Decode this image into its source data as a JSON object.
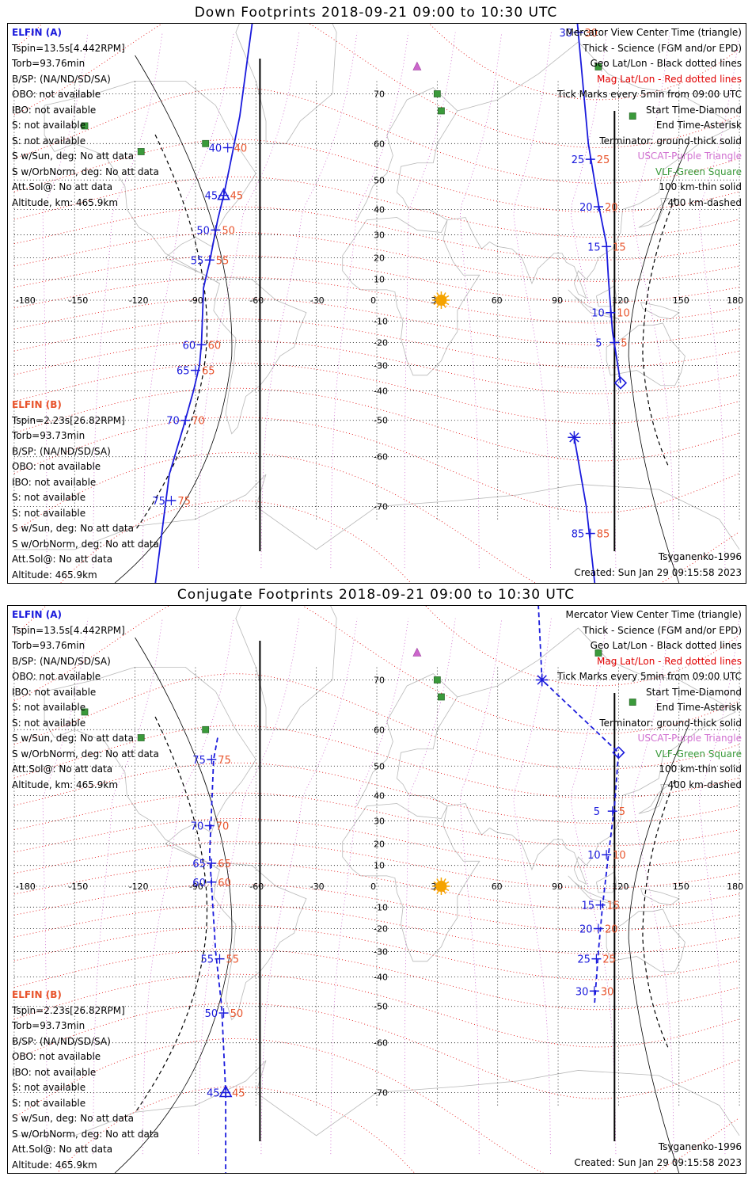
{
  "panels": [
    {
      "title": "Down Footprints 2018-09-21 09:00 to 10:30 UTC",
      "elfin_a": [
        "ELFIN (A)",
        "Tspin=13.5s[4.442RPM]",
        "Torb=93.76min",
        "B/SP: (NA/ND/SD/SA)",
        "OBO: not available",
        "IBO: not available",
        "S: not available",
        "S: not available",
        "S w/Sun, deg: No att data",
        "S w/OrbNorm, deg: No att data",
        "Att.Sol@: No att data",
        "Altitude, km: 465.9km"
      ],
      "elfin_b": [
        "ELFIN (B)",
        "Tspin=2.23s[26.82RPM]",
        "Torb=93.73min",
        "B/SP: (NA/ND/SD/SA)",
        "OBO: not available",
        "IBO: not available",
        "S: not available",
        "S: not available",
        "S w/Sun, deg: No att data",
        "S w/OrbNorm, deg: No att data",
        "Att.Sol@: No att data",
        "Altitude: 465.9km"
      ],
      "legend": [
        "Mercator View Center Time (triangle)",
        "Thick - Science (FGM and/or EPD)",
        "Geo Lat/Lon - Black dotted lines",
        "Mag Lat/Lon - Red dotted lines",
        "Tick Marks every 5min from 09:00 UTC",
        "Start Time-Diamond",
        "End Time-Asterisk",
        "Terminator: ground-thick solid",
        "USCAT-Purple Triangle",
        "VLF-Green Square",
        "100 km-thin solid",
        "400 km-dashed"
      ],
      "model": "Tsyganenko-1996",
      "created": "Created: Sun Jan 29 09:15:58 2023",
      "lon_labels": [
        "-180",
        "-150",
        "-120",
        "-90",
        "-60",
        "-30",
        "0",
        "30",
        "60",
        "90",
        "120",
        "150",
        "180"
      ],
      "lat_labels": [
        "70",
        "60",
        "50",
        "40",
        "30",
        "20",
        "10",
        "0",
        "-10",
        "-20",
        "-30",
        "-40",
        "-50",
        "-60",
        "-70"
      ],
      "track_a": [
        {
          "lon": -61,
          "lat": 80
        },
        {
          "lon": -68,
          "lat": 66
        },
        {
          "lon": -73,
          "lat": 54
        },
        {
          "lon": -76,
          "lat": 45
        },
        {
          "lon": -79,
          "lat": 36
        },
        {
          "lon": -83,
          "lat": 18
        },
        {
          "lon": -86,
          "lat": 6
        },
        {
          "lon": -87,
          "lat": -20
        },
        {
          "lon": -88,
          "lat": -30
        },
        {
          "lon": -91,
          "lat": -40
        },
        {
          "lon": -96,
          "lat": -52
        },
        {
          "lon": -103,
          "lat": -64
        },
        {
          "lon": -112,
          "lat": -82
        }
      ],
      "track_a_ticks": [
        {
          "lon": -74,
          "lat": 59,
          "label": "40"
        },
        {
          "lon": -76,
          "lat": 45,
          "label": "45"
        },
        {
          "lon": -80,
          "lat": 32,
          "label": "50"
        },
        {
          "lon": -83,
          "lat": 19,
          "label": "55"
        },
        {
          "lon": -87,
          "lat": -21,
          "label": "60"
        },
        {
          "lon": -90,
          "lat": -32,
          "label": "65"
        },
        {
          "lon": -95,
          "lat": -50,
          "label": "70"
        },
        {
          "lon": -102,
          "lat": -69,
          "label": "75"
        }
      ],
      "track_b": [
        {
          "lon": 99,
          "lat": 80
        },
        {
          "lon": 105,
          "lat": 60
        },
        {
          "lon": 110,
          "lat": 42
        },
        {
          "lon": 114,
          "lat": 26
        },
        {
          "lon": 115,
          "lat": 10
        },
        {
          "lon": 117,
          "lat": -15
        },
        {
          "lon": 121,
          "lat": -37
        }
      ],
      "track_b_ticks": [
        {
          "lon": 100,
          "lat": 78,
          "label": "30"
        },
        {
          "lon": 106,
          "lat": 56,
          "label": "25"
        },
        {
          "lon": 110,
          "lat": 41,
          "label": "20"
        },
        {
          "lon": 114,
          "lat": 25,
          "label": "15"
        },
        {
          "lon": 116,
          "lat": -6,
          "label": "10"
        },
        {
          "lon": 118,
          "lat": -20,
          "label": "5"
        }
      ],
      "track_b2": [
        {
          "lon": 98,
          "lat": -55
        },
        {
          "lon": 104,
          "lat": -70
        },
        {
          "lon": 110,
          "lat": -82
        }
      ],
      "track_b2_ticks": [
        {
          "lon": 106,
          "lat": -74,
          "label": "85"
        }
      ],
      "markers": {
        "triangle": {
          "lon": -76,
          "lat": 45
        },
        "diamond": {
          "lon": 121,
          "lat": -37
        },
        "asterisk": {
          "lon": 98,
          "lat": -55
        }
      }
    },
    {
      "title": "Conjugate Footprints 2018-09-21 09:00 to 10:30 UTC",
      "elfin_a": [
        "ELFIN (A)",
        "Tspin=13.5s[4.442RPM]",
        "Torb=93.76min",
        "B/SP: (NA/ND/SD/SA)",
        "OBO: not available",
        "IBO: not available",
        "S: not available",
        "S: not available",
        "S w/Sun, deg: No att data",
        "S w/OrbNorm, deg: No att data",
        "Att.Sol@: No att data",
        "Altitude, km: 465.9km"
      ],
      "elfin_b": [
        "ELFIN (B)",
        "Tspin=2.23s[26.82RPM]",
        "Torb=93.73min",
        "B/SP: (NA/ND/SD/SA)",
        "OBO: not available",
        "IBO: not available",
        "S: not available",
        "S: not available",
        "S w/Sun, deg: No att data",
        "S w/OrbNorm, deg: No att data",
        "Att.Sol@: No att data",
        "Altitude: 465.9km"
      ],
      "legend": [
        "Mercator View Center Time (triangle)",
        "Thick - Science (FGM and/or EPD)",
        "Geo Lat/Lon - Black dotted lines",
        "Mag Lat/Lon - Red dotted lines",
        "Tick Marks every 5min from 09:00 UTC",
        "Start Time-Diamond",
        "End Time-Asterisk",
        "Terminator: ground-thick solid",
        "USCAT-Purple Triangle",
        "VLF-Green Square",
        "100 km-thin solid",
        "400 km-dashed"
      ],
      "model": "Tsyganenko-1996",
      "created": "Created: Sun Jan 29 09:15:58 2023",
      "lon_labels": [
        "-180",
        "-150",
        "-120",
        "-90",
        "-60",
        "-30",
        "0",
        "30",
        "60",
        "90",
        "120",
        "150",
        "180"
      ],
      "lat_labels": [
        "70",
        "60",
        "50",
        "40",
        "30",
        "20",
        "10",
        "0",
        "-10",
        "-20",
        "-30",
        "-40",
        "-50",
        "-60",
        "-70"
      ],
      "track_a": [
        {
          "lon": -79,
          "lat": 58
        },
        {
          "lon": -81,
          "lat": 52
        },
        {
          "lon": -82,
          "lat": 35
        },
        {
          "lon": -83,
          "lat": 15
        },
        {
          "lon": -82,
          "lat": 0
        },
        {
          "lon": -80,
          "lat": -30
        },
        {
          "lon": -77,
          "lat": -50
        },
        {
          "lon": -75,
          "lat": -70
        },
        {
          "lon": -75,
          "lat": -82
        }
      ],
      "track_a_ticks": [
        {
          "lon": -82,
          "lat": 52,
          "label": "75"
        },
        {
          "lon": -83,
          "lat": 28,
          "label": "70"
        },
        {
          "lon": -82,
          "lat": 11,
          "label": "65"
        },
        {
          "lon": -82,
          "lat": 2,
          "label": "60"
        },
        {
          "lon": -78,
          "lat": -33,
          "label": "55"
        },
        {
          "lon": -76,
          "lat": -52,
          "label": "50"
        },
        {
          "lon": -75,
          "lat": -70,
          "label": "45"
        }
      ],
      "track_b": [
        {
          "lon": 80,
          "lat": 80
        },
        {
          "lon": 82,
          "lat": 70
        },
        {
          "lon": 120,
          "lat": 54
        },
        {
          "lon": 118,
          "lat": 36
        },
        {
          "lon": 115,
          "lat": 15
        },
        {
          "lon": 112,
          "lat": -10
        },
        {
          "lon": 110,
          "lat": -30
        },
        {
          "lon": 108,
          "lat": -50
        }
      ],
      "track_b_ticks": [
        {
          "lon": 117,
          "lat": 34,
          "label": "5"
        },
        {
          "lon": 114,
          "lat": 15,
          "label": "10"
        },
        {
          "lon": 111,
          "lat": -9,
          "label": "15"
        },
        {
          "lon": 110,
          "lat": -20,
          "label": "20"
        },
        {
          "lon": 109,
          "lat": -33,
          "label": "25"
        },
        {
          "lon": 108,
          "lat": -45,
          "label": "30"
        }
      ],
      "track_b2": [],
      "track_b2_ticks": [],
      "markers": {
        "triangle": {
          "lon": -75,
          "lat": -70
        },
        "diamond": {
          "lon": 120,
          "lat": 54
        },
        "asterisk": {
          "lon": 82,
          "lat": 70
        }
      }
    }
  ],
  "colors": {
    "blue": "#1a1adc",
    "orange": "#e8542c",
    "red_grid": "#e00000",
    "purple": "#cc66cc",
    "green": "#3a9a3a",
    "sun": "#f5a300",
    "land": "#b8b8b8"
  }
}
